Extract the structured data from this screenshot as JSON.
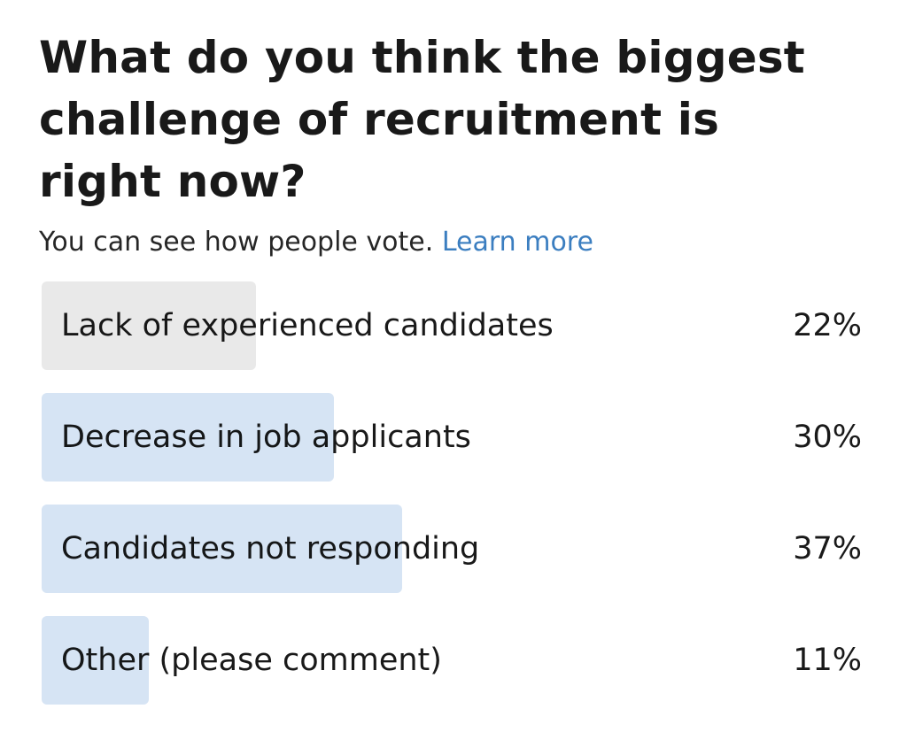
{
  "poll": {
    "question": "What do you think the biggest challenge of recruitment is right now?",
    "visibility_text": "You can see how people vote.",
    "learn_more_label": "Learn more",
    "link_color": "#3b7ec0",
    "options": [
      {
        "label": "Lack of experienced candidates",
        "percent_label": "22%",
        "percent": 22,
        "bar_color": "#e9e9e9"
      },
      {
        "label": "Decrease in job applicants",
        "percent_label": "30%",
        "percent": 30,
        "bar_color": "#d6e4f4"
      },
      {
        "label": "Candidates not responding",
        "percent_label": "37%",
        "percent": 37,
        "bar_color": "#d6e4f4"
      },
      {
        "label": "Other (please comment)",
        "percent_label": "11%",
        "percent": 11,
        "bar_color": "#d6e4f4"
      }
    ]
  }
}
